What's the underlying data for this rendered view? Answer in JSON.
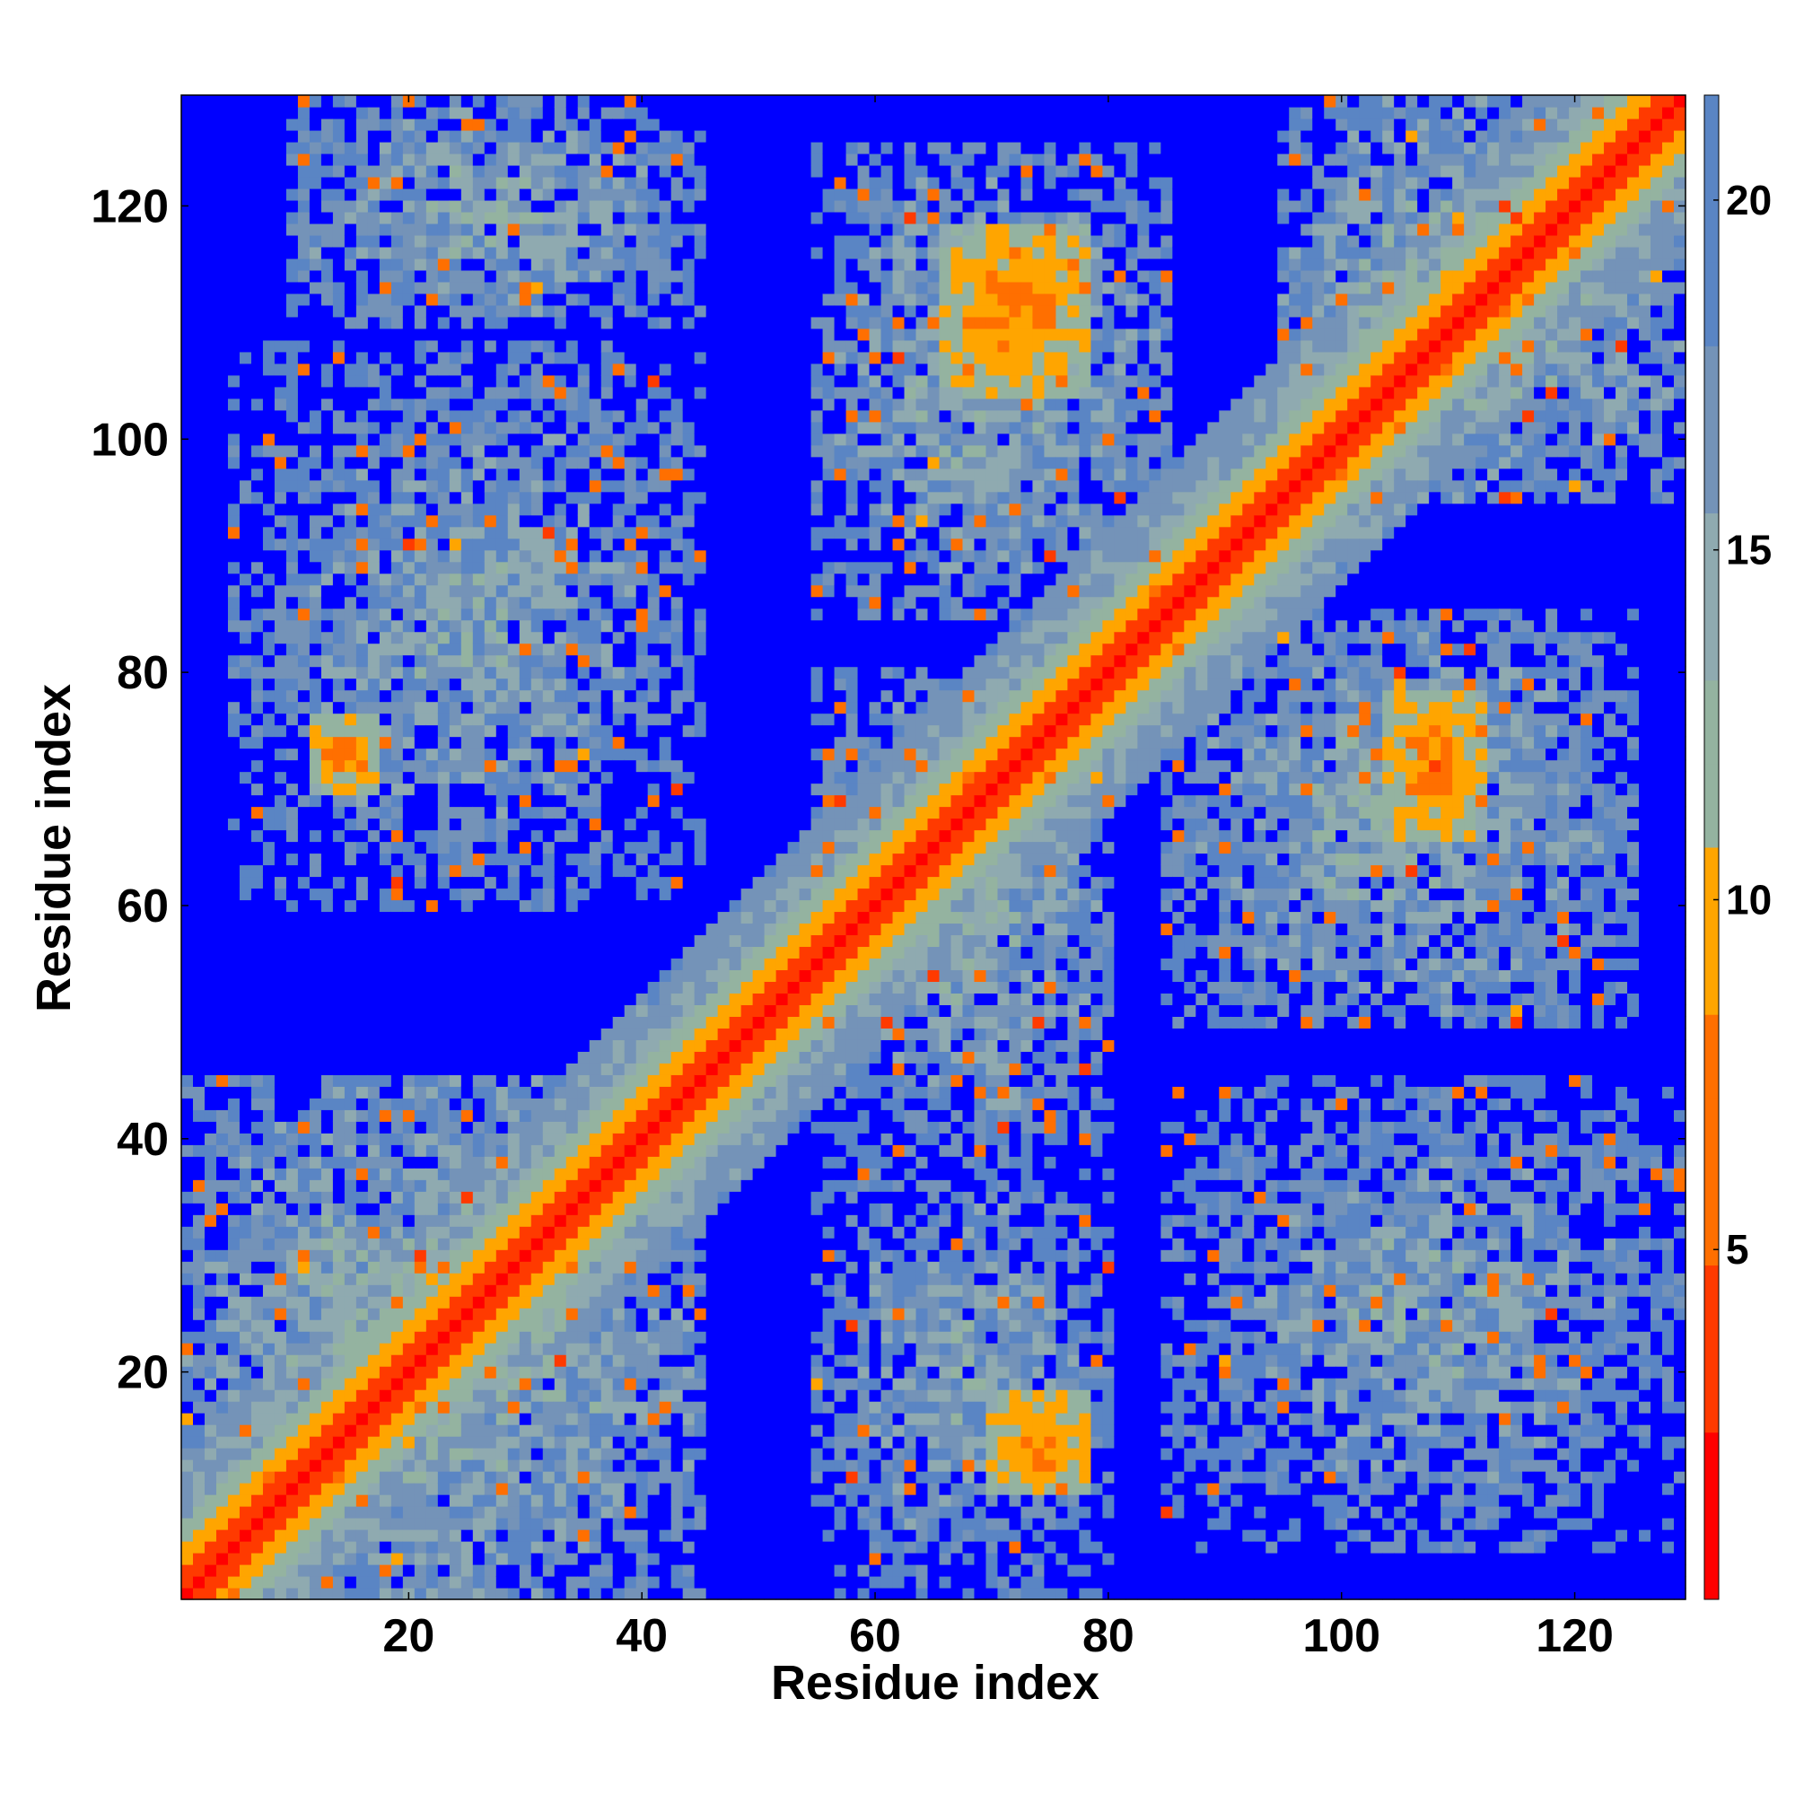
{
  "chart_data": {
    "type": "heatmap",
    "title": "",
    "xlabel": "Residue index",
    "ylabel": "Residue index",
    "n_residues": 129,
    "xlim": [
      0.5,
      129.5
    ],
    "ylim": [
      0.5,
      129.5
    ],
    "x_ticks": [
      20,
      40,
      60,
      80,
      100,
      120
    ],
    "y_ticks": [
      20,
      40,
      60,
      80,
      100,
      120
    ],
    "colorbar": {
      "ticks": [
        5,
        10,
        15,
        20
      ],
      "range": [
        0,
        21.5
      ],
      "colors": [
        "#ff0000",
        "#ff3a00",
        "#ff6f00",
        "#ffa500",
        "#94b3a0",
        "#8faab0",
        "#7493b8",
        "#5a85c4",
        "#0000ff"
      ],
      "cutoff_color": "#0000ff",
      "cutoff_value": 21
    },
    "grid": false,
    "legend": "colorbar-right",
    "contact_regions": [
      {
        "x": [
          1,
          129
        ],
        "y": [
          1,
          129
        ],
        "kind": "diagonal",
        "approx_distance": 2
      },
      {
        "x": [
          10,
          45
        ],
        "y": [
          110,
          129
        ],
        "approx_distance": 14
      },
      {
        "x": [
          5,
          45
        ],
        "y": [
          60,
          108
        ],
        "approx_distance": 15
      },
      {
        "x": [
          1,
          45
        ],
        "y": [
          1,
          45
        ],
        "approx_distance": 13
      },
      {
        "x": [
          55,
          85
        ],
        "y": [
          85,
          125
        ],
        "approx_distance": 14
      },
      {
        "x": [
          95,
          129
        ],
        "y": [
          95,
          129
        ],
        "approx_distance": 13
      },
      {
        "x": [
          55,
          80
        ],
        "y": [
          40,
          80
        ],
        "approx_distance": 14
      },
      {
        "x": [
          85,
          125
        ],
        "y": [
          50,
          85
        ],
        "approx_distance": 14
      },
      {
        "x": [
          55,
          80
        ],
        "y": [
          1,
          40
        ],
        "approx_distance": 15
      },
      {
        "x": [
          85,
          129
        ],
        "y": [
          5,
          45
        ],
        "approx_distance": 15
      },
      {
        "x": [
          12,
          17
        ],
        "y": [
          70,
          76
        ],
        "kind": "antiparallel-contact",
        "approx_distance": 6
      },
      {
        "x": [
          70,
          78
        ],
        "y": [
          10,
          18
        ],
        "kind": "antiparallel-contact",
        "approx_distance": 6
      },
      {
        "x": [
          104,
          112
        ],
        "y": [
          66,
          78
        ],
        "kind": "contact-cluster",
        "approx_distance": 6
      },
      {
        "x": [
          66,
          78
        ],
        "y": [
          104,
          118
        ],
        "kind": "contact-cluster",
        "approx_distance": 6
      }
    ]
  }
}
